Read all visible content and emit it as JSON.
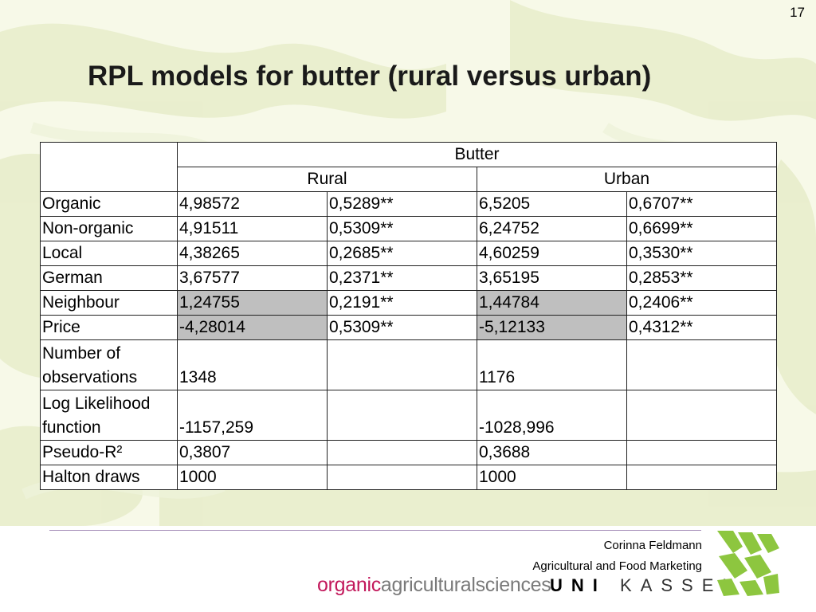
{
  "slide": {
    "page_number": "17",
    "title": "RPL models for butter (rural versus urban)"
  },
  "table": {
    "group_header": "Butter",
    "subheaders": [
      "Rural",
      "Urban"
    ],
    "rows": [
      {
        "label": "Organic",
        "cells": [
          "4,98572",
          "0,5289**",
          "6,5205",
          "0,6707**"
        ]
      },
      {
        "label": "Non-organic",
        "cells": [
          "4,91511",
          "0,5309**",
          "6,24752",
          "0,6699**"
        ]
      },
      {
        "label": "Local",
        "cells": [
          "4,38265",
          "0,2685**",
          "4,60259",
          "0,3530**"
        ]
      },
      {
        "label": "German",
        "cells": [
          "3,67577",
          "0,2371**",
          "3,65195",
          "0,2853**"
        ]
      },
      {
        "label": "Neighbour",
        "cells": [
          "1,24755",
          "0,2191**",
          "1,44784",
          "0,2406**"
        ]
      },
      {
        "label": "Price",
        "cells": [
          "-4,28014",
          "0,5309**",
          "-5,12133",
          "0,4312**"
        ]
      }
    ],
    "stats": [
      {
        "label_line1": "Number of",
        "label_line2": "observations",
        "rural": "1348",
        "urban": "1176"
      },
      {
        "label_line1": "Log Likelihood",
        "label_line2": "function",
        "rural": "-1157,259",
        "urban": "-1028,996"
      }
    ],
    "pseudo_r2": {
      "label": "Pseudo-R²",
      "rural": "0,3807",
      "urban": "0,3688"
    },
    "halton": {
      "label": "Halton draws",
      "rural": "1000",
      "urban": "1000"
    },
    "shade_color": "#bfbfbf"
  },
  "footer": {
    "author": "Corinna Feldmann",
    "department": "Agricultural and Food Marketing",
    "brand_organic": "organic",
    "brand_rest": "agriculturalsciences",
    "university": "UNIKASSEL",
    "uni_bold": "UNI",
    "uni_rest": "KASSEL",
    "logo_color": "#8dc63f"
  }
}
